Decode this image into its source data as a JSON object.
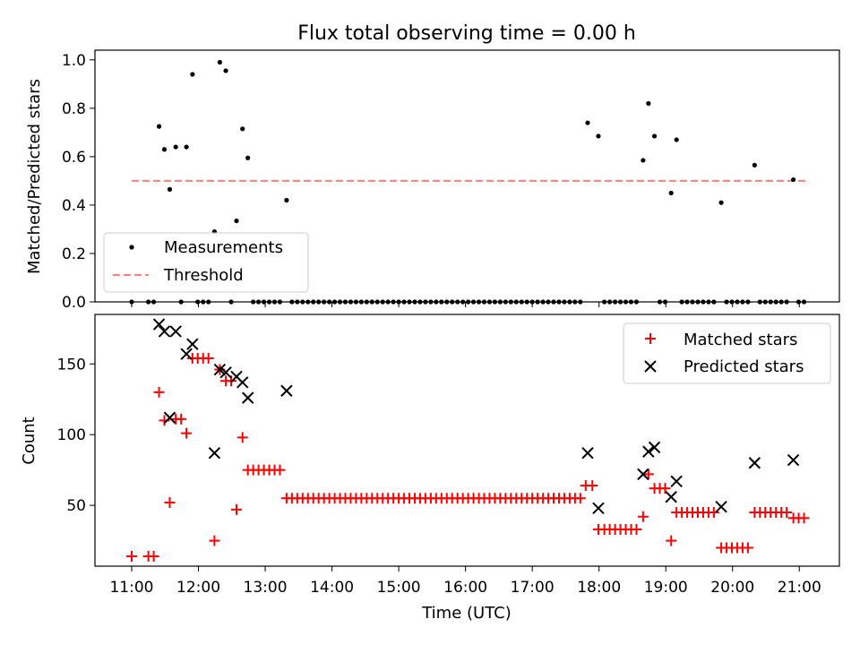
{
  "chart_data": [
    {
      "type": "scatter",
      "title": "Flux total observing time = 0.00 h",
      "xlabel": "",
      "ylabel": "Matched/Predicted stars",
      "xlim": [
        10.45,
        21.6
      ],
      "ylim": [
        0.0,
        1.04
      ],
      "yticks": [
        0.0,
        0.2,
        0.4,
        0.6,
        0.8,
        1.0
      ],
      "ytick_labels": [
        "0.0",
        "0.2",
        "0.4",
        "0.6",
        "0.8",
        "1.0"
      ],
      "legend_placement": "lower-left",
      "grid": false,
      "threshold": {
        "name": "Threshold",
        "value": 0.5,
        "x_range": [
          11.0,
          21.1
        ],
        "color": "#ff7f7f",
        "style": "dashed"
      },
      "series": [
        {
          "name": "Measurements",
          "marker": "dot",
          "color": "#000000",
          "points": [
            [
              11.0,
              0
            ],
            [
              11.25,
              0
            ],
            [
              11.33,
              0
            ],
            [
              11.41,
              0.725
            ],
            [
              11.49,
              0.63
            ],
            [
              11.57,
              0.465
            ],
            [
              11.66,
              0.64
            ],
            [
              11.74,
              0
            ],
            [
              11.82,
              0.64
            ],
            [
              11.91,
              0.94
            ],
            [
              11.99,
              0
            ],
            [
              12.07,
              0
            ],
            [
              12.15,
              0
            ],
            [
              12.24,
              0.29
            ],
            [
              12.32,
              0.99
            ],
            [
              12.41,
              0.955
            ],
            [
              12.49,
              0
            ],
            [
              12.57,
              0.335
            ],
            [
              12.66,
              0.715
            ],
            [
              12.74,
              0.595
            ],
            [
              12.82,
              0
            ],
            [
              12.9,
              0
            ],
            [
              12.98,
              0
            ],
            [
              13.06,
              0
            ],
            [
              13.14,
              0
            ],
            [
              13.22,
              0
            ],
            [
              13.32,
              0.42
            ],
            [
              13.4,
              0
            ],
            [
              13.48,
              0
            ],
            [
              13.56,
              0
            ],
            [
              13.64,
              0
            ],
            [
              13.72,
              0
            ],
            [
              13.8,
              0
            ],
            [
              13.88,
              0
            ],
            [
              13.96,
              0
            ],
            [
              14.04,
              0
            ],
            [
              14.12,
              0
            ],
            [
              14.2,
              0
            ],
            [
              14.28,
              0
            ],
            [
              14.36,
              0
            ],
            [
              14.44,
              0
            ],
            [
              14.52,
              0
            ],
            [
              14.6,
              0
            ],
            [
              14.68,
              0
            ],
            [
              14.76,
              0
            ],
            [
              14.84,
              0
            ],
            [
              14.92,
              0
            ],
            [
              15.0,
              0
            ],
            [
              15.08,
              0
            ],
            [
              15.16,
              0
            ],
            [
              15.24,
              0
            ],
            [
              15.32,
              0
            ],
            [
              15.4,
              0
            ],
            [
              15.48,
              0
            ],
            [
              15.56,
              0
            ],
            [
              15.64,
              0
            ],
            [
              15.72,
              0
            ],
            [
              15.8,
              0
            ],
            [
              15.88,
              0
            ],
            [
              15.96,
              0
            ],
            [
              16.04,
              0
            ],
            [
              16.12,
              0
            ],
            [
              16.2,
              0
            ],
            [
              16.28,
              0
            ],
            [
              16.36,
              0
            ],
            [
              16.44,
              0
            ],
            [
              16.52,
              0
            ],
            [
              16.6,
              0
            ],
            [
              16.68,
              0
            ],
            [
              16.76,
              0
            ],
            [
              16.84,
              0
            ],
            [
              16.92,
              0
            ],
            [
              17.0,
              0
            ],
            [
              17.08,
              0
            ],
            [
              17.16,
              0
            ],
            [
              17.24,
              0
            ],
            [
              17.32,
              0
            ],
            [
              17.4,
              0
            ],
            [
              17.48,
              0
            ],
            [
              17.56,
              0
            ],
            [
              17.64,
              0
            ],
            [
              17.72,
              0
            ],
            [
              17.83,
              0.74
            ],
            [
              17.99,
              0.685
            ],
            [
              18.08,
              0
            ],
            [
              18.16,
              0
            ],
            [
              18.24,
              0
            ],
            [
              18.32,
              0
            ],
            [
              18.4,
              0
            ],
            [
              18.48,
              0
            ],
            [
              18.56,
              0
            ],
            [
              18.66,
              0.585
            ],
            [
              18.74,
              0.82
            ],
            [
              18.83,
              0.685
            ],
            [
              18.91,
              0
            ],
            [
              18.99,
              0
            ],
            [
              19.08,
              0.45
            ],
            [
              19.16,
              0.67
            ],
            [
              19.24,
              0
            ],
            [
              19.32,
              0
            ],
            [
              19.4,
              0
            ],
            [
              19.48,
              0
            ],
            [
              19.56,
              0
            ],
            [
              19.64,
              0
            ],
            [
              19.72,
              0
            ],
            [
              19.83,
              0.41
            ],
            [
              19.91,
              0
            ],
            [
              19.99,
              0
            ],
            [
              20.07,
              0
            ],
            [
              20.15,
              0
            ],
            [
              20.23,
              0
            ],
            [
              20.33,
              0.565
            ],
            [
              20.41,
              0
            ],
            [
              20.49,
              0
            ],
            [
              20.57,
              0
            ],
            [
              20.65,
              0
            ],
            [
              20.73,
              0
            ],
            [
              20.81,
              0
            ],
            [
              20.91,
              0.505
            ],
            [
              20.99,
              0
            ],
            [
              21.07,
              0
            ]
          ]
        }
      ]
    },
    {
      "type": "scatter",
      "title": "",
      "xlabel": "Time (UTC)",
      "ylabel": "Count",
      "xlim": [
        10.45,
        21.6
      ],
      "ylim": [
        7,
        185
      ],
      "yticks": [
        50,
        100,
        150
      ],
      "ytick_labels": [
        "50",
        "100",
        "150"
      ],
      "xticks": [
        11,
        12,
        13,
        14,
        15,
        16,
        17,
        18,
        19,
        20,
        21
      ],
      "xtick_labels": [
        "11:00",
        "12:00",
        "13:00",
        "14:00",
        "15:00",
        "16:00",
        "17:00",
        "18:00",
        "19:00",
        "20:00",
        "21:00"
      ],
      "legend_placement": "upper-right",
      "grid": false,
      "series": [
        {
          "name": "Matched stars",
          "marker": "plus",
          "color": "#ff0000",
          "points": [
            [
              11.0,
              14
            ],
            [
              11.25,
              14
            ],
            [
              11.33,
              14
            ],
            [
              11.41,
              130
            ],
            [
              11.49,
              110
            ],
            [
              11.57,
              52
            ],
            [
              11.66,
              111
            ],
            [
              11.74,
              111
            ],
            [
              11.82,
              101
            ],
            [
              11.91,
              154
            ],
            [
              11.99,
              154
            ],
            [
              12.07,
              154
            ],
            [
              12.15,
              154
            ],
            [
              12.24,
              25
            ],
            [
              12.32,
              146
            ],
            [
              12.41,
              138
            ],
            [
              12.49,
              138
            ],
            [
              12.57,
              47
            ],
            [
              12.66,
              98
            ],
            [
              12.74,
              75
            ],
            [
              12.82,
              75
            ],
            [
              12.9,
              75
            ],
            [
              12.98,
              75
            ],
            [
              13.06,
              75
            ],
            [
              13.14,
              75
            ],
            [
              13.22,
              75
            ],
            [
              13.32,
              55
            ],
            [
              13.4,
              55
            ],
            [
              13.48,
              55
            ],
            [
              13.56,
              55
            ],
            [
              13.64,
              55
            ],
            [
              13.72,
              55
            ],
            [
              13.8,
              55
            ],
            [
              13.88,
              55
            ],
            [
              13.96,
              55
            ],
            [
              14.04,
              55
            ],
            [
              14.12,
              55
            ],
            [
              14.2,
              55
            ],
            [
              14.28,
              55
            ],
            [
              14.36,
              55
            ],
            [
              14.44,
              55
            ],
            [
              14.52,
              55
            ],
            [
              14.6,
              55
            ],
            [
              14.68,
              55
            ],
            [
              14.76,
              55
            ],
            [
              14.84,
              55
            ],
            [
              14.92,
              55
            ],
            [
              15.0,
              55
            ],
            [
              15.08,
              55
            ],
            [
              15.16,
              55
            ],
            [
              15.24,
              55
            ],
            [
              15.32,
              55
            ],
            [
              15.4,
              55
            ],
            [
              15.48,
              55
            ],
            [
              15.56,
              55
            ],
            [
              15.64,
              55
            ],
            [
              15.72,
              55
            ],
            [
              15.8,
              55
            ],
            [
              15.88,
              55
            ],
            [
              15.96,
              55
            ],
            [
              16.04,
              55
            ],
            [
              16.12,
              55
            ],
            [
              16.2,
              55
            ],
            [
              16.28,
              55
            ],
            [
              16.36,
              55
            ],
            [
              16.44,
              55
            ],
            [
              16.52,
              55
            ],
            [
              16.6,
              55
            ],
            [
              16.68,
              55
            ],
            [
              16.76,
              55
            ],
            [
              16.84,
              55
            ],
            [
              16.92,
              55
            ],
            [
              17.0,
              55
            ],
            [
              17.08,
              55
            ],
            [
              17.16,
              55
            ],
            [
              17.24,
              55
            ],
            [
              17.32,
              55
            ],
            [
              17.4,
              55
            ],
            [
              17.48,
              55
            ],
            [
              17.56,
              55
            ],
            [
              17.64,
              55
            ],
            [
              17.72,
              55
            ],
            [
              17.8,
              64
            ],
            [
              17.9,
              64
            ],
            [
              17.99,
              33
            ],
            [
              18.08,
              33
            ],
            [
              18.16,
              33
            ],
            [
              18.24,
              33
            ],
            [
              18.32,
              33
            ],
            [
              18.4,
              33
            ],
            [
              18.48,
              33
            ],
            [
              18.56,
              33
            ],
            [
              18.66,
              42
            ],
            [
              18.74,
              72
            ],
            [
              18.83,
              62
            ],
            [
              18.91,
              62
            ],
            [
              18.99,
              62
            ],
            [
              19.08,
              25
            ],
            [
              19.16,
              45
            ],
            [
              19.24,
              45
            ],
            [
              19.32,
              45
            ],
            [
              19.4,
              45
            ],
            [
              19.48,
              45
            ],
            [
              19.56,
              45
            ],
            [
              19.64,
              45
            ],
            [
              19.72,
              45
            ],
            [
              19.83,
              20
            ],
            [
              19.91,
              20
            ],
            [
              19.99,
              20
            ],
            [
              20.07,
              20
            ],
            [
              20.15,
              20
            ],
            [
              20.23,
              20
            ],
            [
              20.33,
              45
            ],
            [
              20.41,
              45
            ],
            [
              20.49,
              45
            ],
            [
              20.57,
              45
            ],
            [
              20.65,
              45
            ],
            [
              20.73,
              45
            ],
            [
              20.81,
              45
            ],
            [
              20.91,
              41
            ],
            [
              20.99,
              41
            ],
            [
              21.07,
              41
            ]
          ]
        },
        {
          "name": "Predicted stars",
          "marker": "x",
          "color": "#000000",
          "points": [
            [
              11.41,
              178
            ],
            [
              11.49,
              173
            ],
            [
              11.57,
              112
            ],
            [
              11.66,
              173
            ],
            [
              11.82,
              157
            ],
            [
              11.91,
              164
            ],
            [
              12.24,
              87
            ],
            [
              12.32,
              146
            ],
            [
              12.41,
              144
            ],
            [
              12.57,
              141
            ],
            [
              12.66,
              137
            ],
            [
              12.74,
              126
            ],
            [
              13.32,
              131
            ],
            [
              17.83,
              87
            ],
            [
              17.99,
              48
            ],
            [
              18.66,
              72
            ],
            [
              18.74,
              88
            ],
            [
              18.83,
              91
            ],
            [
              19.08,
              56
            ],
            [
              19.16,
              67
            ],
            [
              19.83,
              49
            ],
            [
              20.33,
              80
            ],
            [
              20.91,
              82
            ]
          ]
        }
      ]
    }
  ]
}
